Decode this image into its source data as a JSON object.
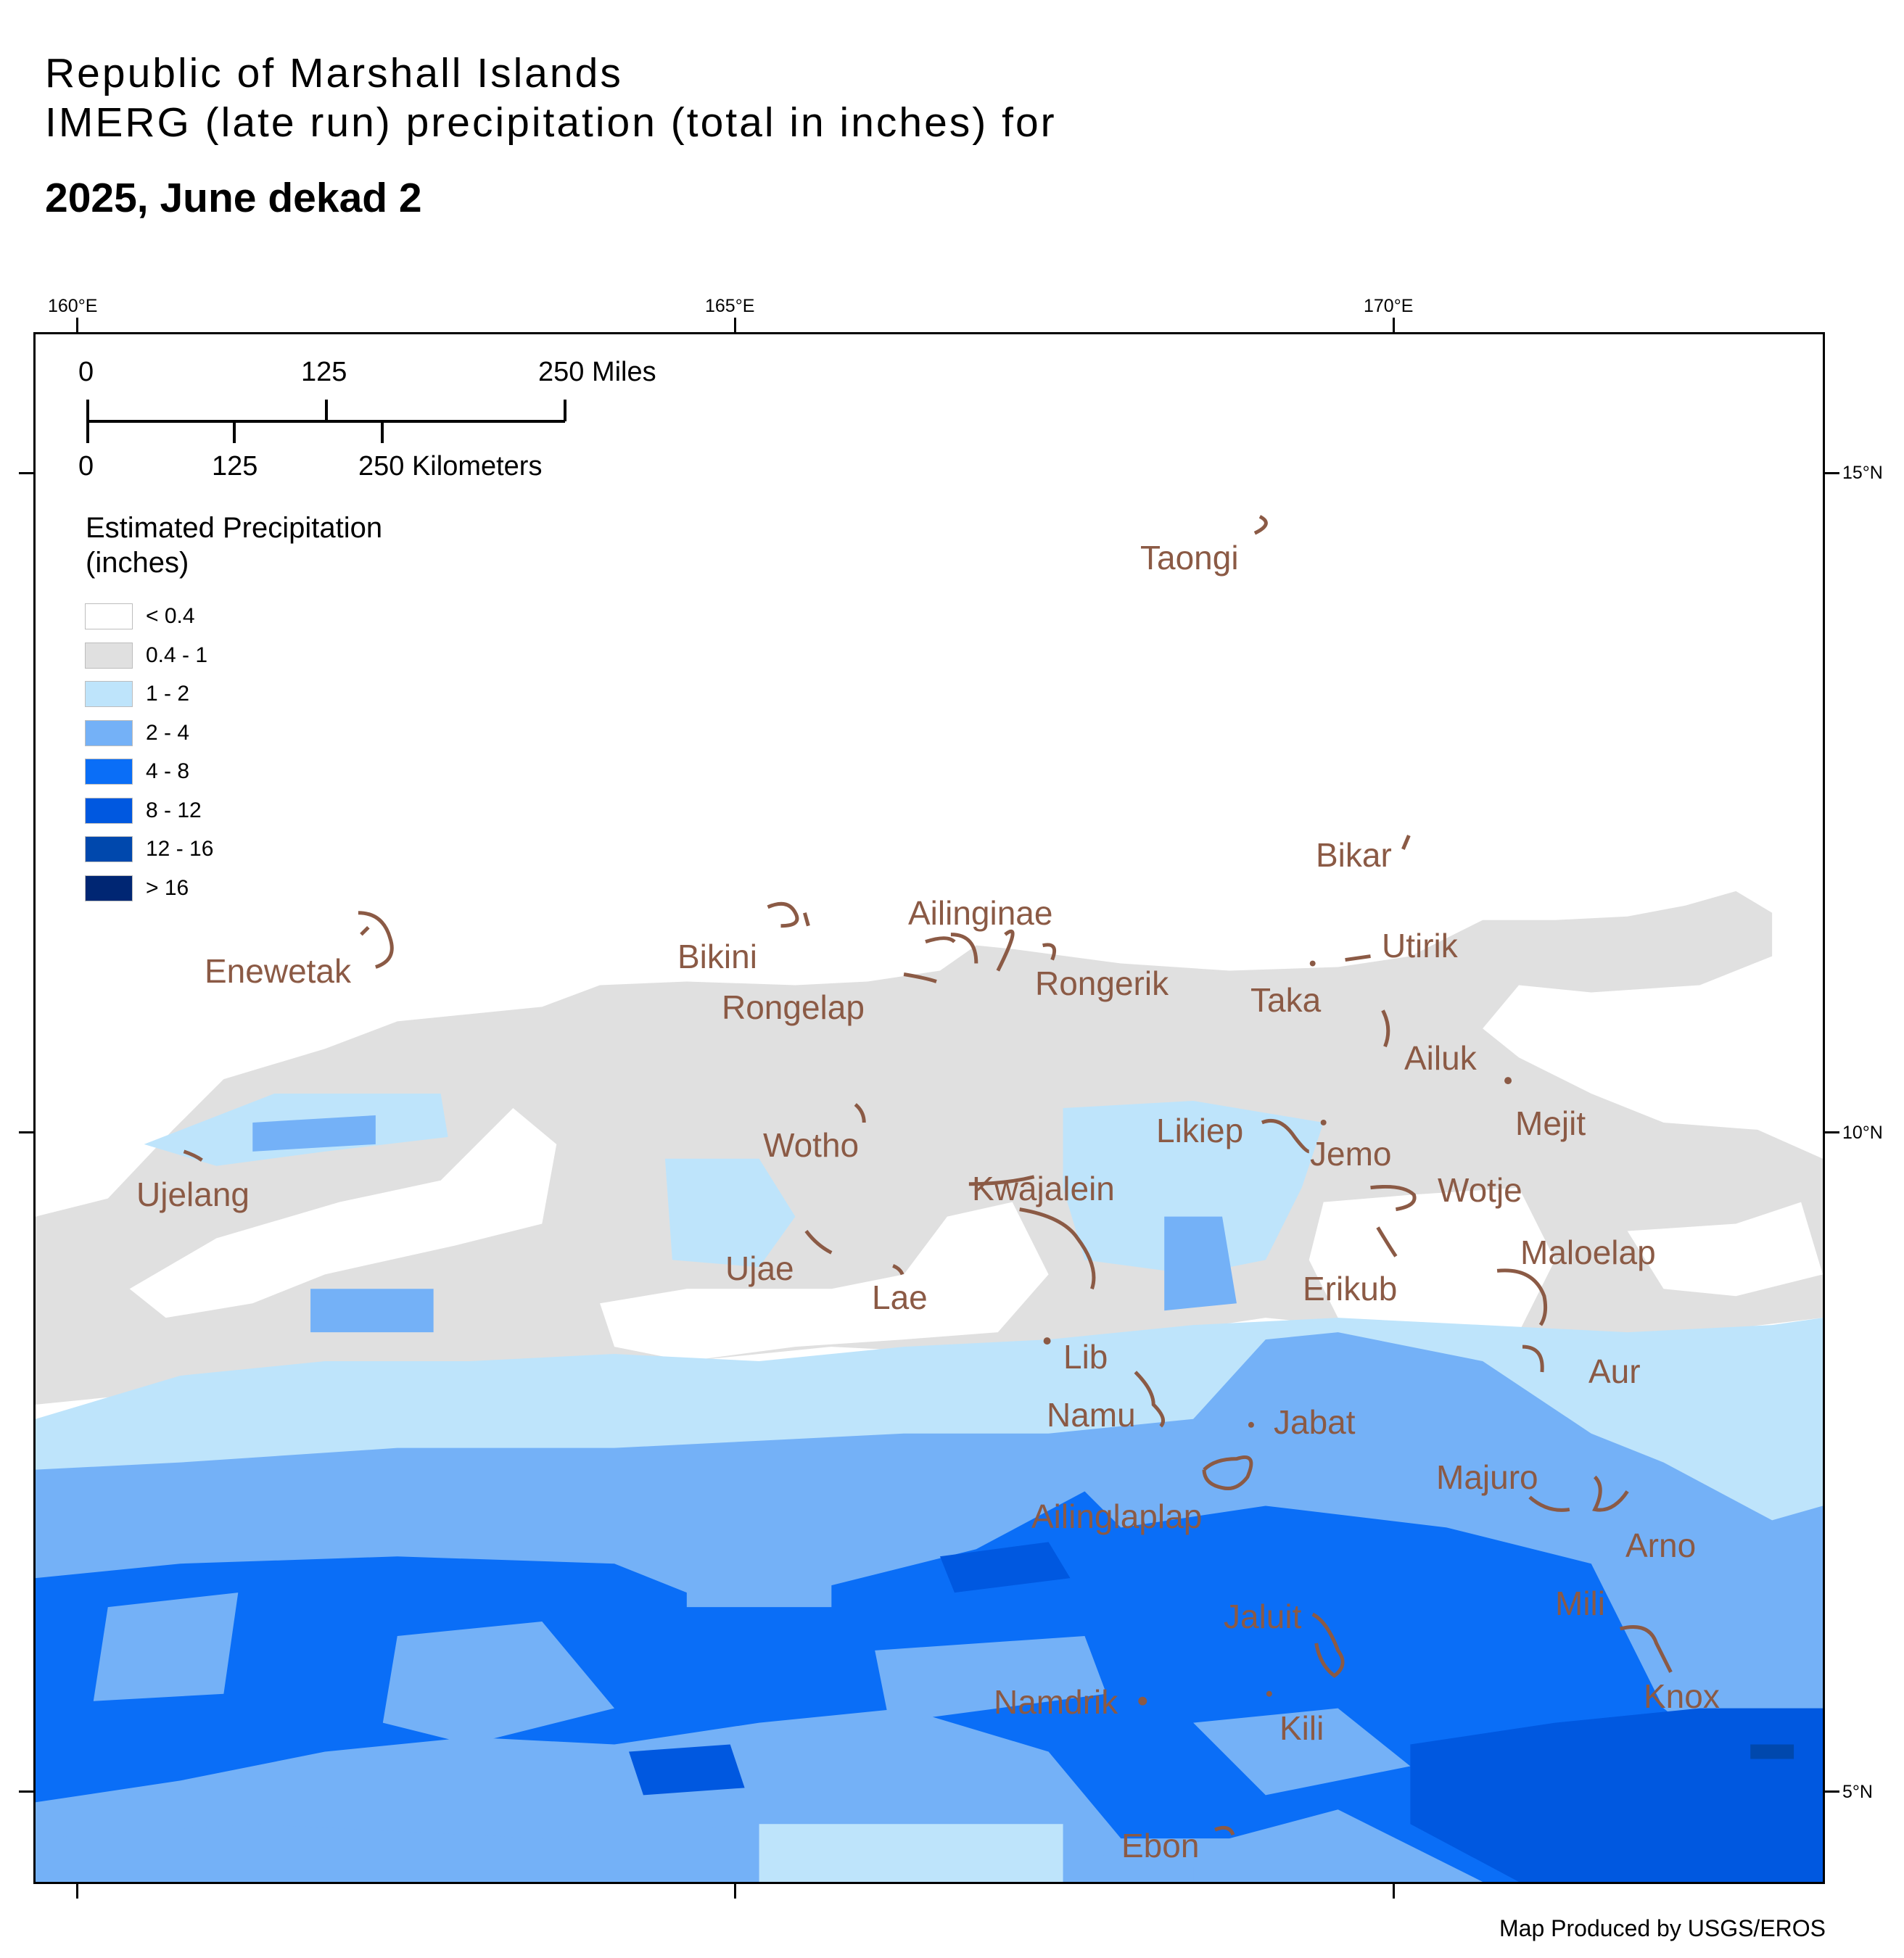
{
  "title": {
    "line1": "Republic of Marshall Islands",
    "line2": "IMERG (late run) precipitation (total in inches) for",
    "line3": "2025, June dekad 2"
  },
  "graticule": {
    "lon_labels": [
      "160°E",
      "165°E",
      "170°E"
    ],
    "lat_labels": [
      "15°N",
      "10°N",
      "5°N"
    ]
  },
  "scale_bar": {
    "miles": [
      "0",
      "125",
      "250 Miles"
    ],
    "kilometers": [
      "0",
      "125",
      "250 Kilometers"
    ]
  },
  "legend": {
    "title_line1": "Estimated Precipitation",
    "title_line2": "(inches)",
    "classes": [
      {
        "label": "< 0.4",
        "color": "#ffffff"
      },
      {
        "label": "0.4 - 1",
        "color": "#e0e0e0"
      },
      {
        "label": "1 - 2",
        "color": "#bee4fb"
      },
      {
        "label": "2 - 4",
        "color": "#74b1f7"
      },
      {
        "label": "4 - 8",
        "color": "#0a6ef7"
      },
      {
        "label": "8 - 12",
        "color": "#0058e0"
      },
      {
        "label": "12 - 16",
        "color": "#0048ad"
      },
      {
        "label": "> 16",
        "color": "#002673"
      }
    ]
  },
  "places": [
    {
      "id": "taongi",
      "label": "Taongi"
    },
    {
      "id": "bikar",
      "label": "Bikar"
    },
    {
      "id": "ailinginae",
      "label": "Ailinginae"
    },
    {
      "id": "utirik",
      "label": "Utirik"
    },
    {
      "id": "enewetak",
      "label": "Enewetak"
    },
    {
      "id": "bikini",
      "label": "Bikini"
    },
    {
      "id": "rongerik",
      "label": "Rongerik"
    },
    {
      "id": "rongelap",
      "label": "Rongelap"
    },
    {
      "id": "taka",
      "label": "Taka"
    },
    {
      "id": "ailuk",
      "label": "Ailuk"
    },
    {
      "id": "mejit",
      "label": "Mejit"
    },
    {
      "id": "likiep",
      "label": "Likiep"
    },
    {
      "id": "wotho",
      "label": "Wotho"
    },
    {
      "id": "jemo",
      "label": "Jemo"
    },
    {
      "id": "kwajalein",
      "label": "Kwajalein"
    },
    {
      "id": "wotje",
      "label": "Wotje"
    },
    {
      "id": "ujelang",
      "label": "Ujelang"
    },
    {
      "id": "maloelap",
      "label": "Maloelap"
    },
    {
      "id": "ujae",
      "label": "Ujae"
    },
    {
      "id": "erikub",
      "label": "Erikub"
    },
    {
      "id": "lae",
      "label": "Lae"
    },
    {
      "id": "lib",
      "label": "Lib"
    },
    {
      "id": "aur",
      "label": "Aur"
    },
    {
      "id": "namu",
      "label": "Namu"
    },
    {
      "id": "jabat",
      "label": "Jabat"
    },
    {
      "id": "majuro",
      "label": "Majuro"
    },
    {
      "id": "ailinglaplap",
      "label": "Ailinglaplap"
    },
    {
      "id": "arno",
      "label": "Arno"
    },
    {
      "id": "mili",
      "label": "Mili"
    },
    {
      "id": "jaluit",
      "label": "Jaluit"
    },
    {
      "id": "knox",
      "label": "Knox"
    },
    {
      "id": "namdrik",
      "label": "Namdrik"
    },
    {
      "id": "kili",
      "label": "Kili"
    },
    {
      "id": "ebon",
      "label": "Ebon"
    }
  ],
  "credit": "Map Produced by USGS/EROS",
  "colors": {
    "atoll_outline": "#8b5a45",
    "label": "#8b5a45"
  }
}
